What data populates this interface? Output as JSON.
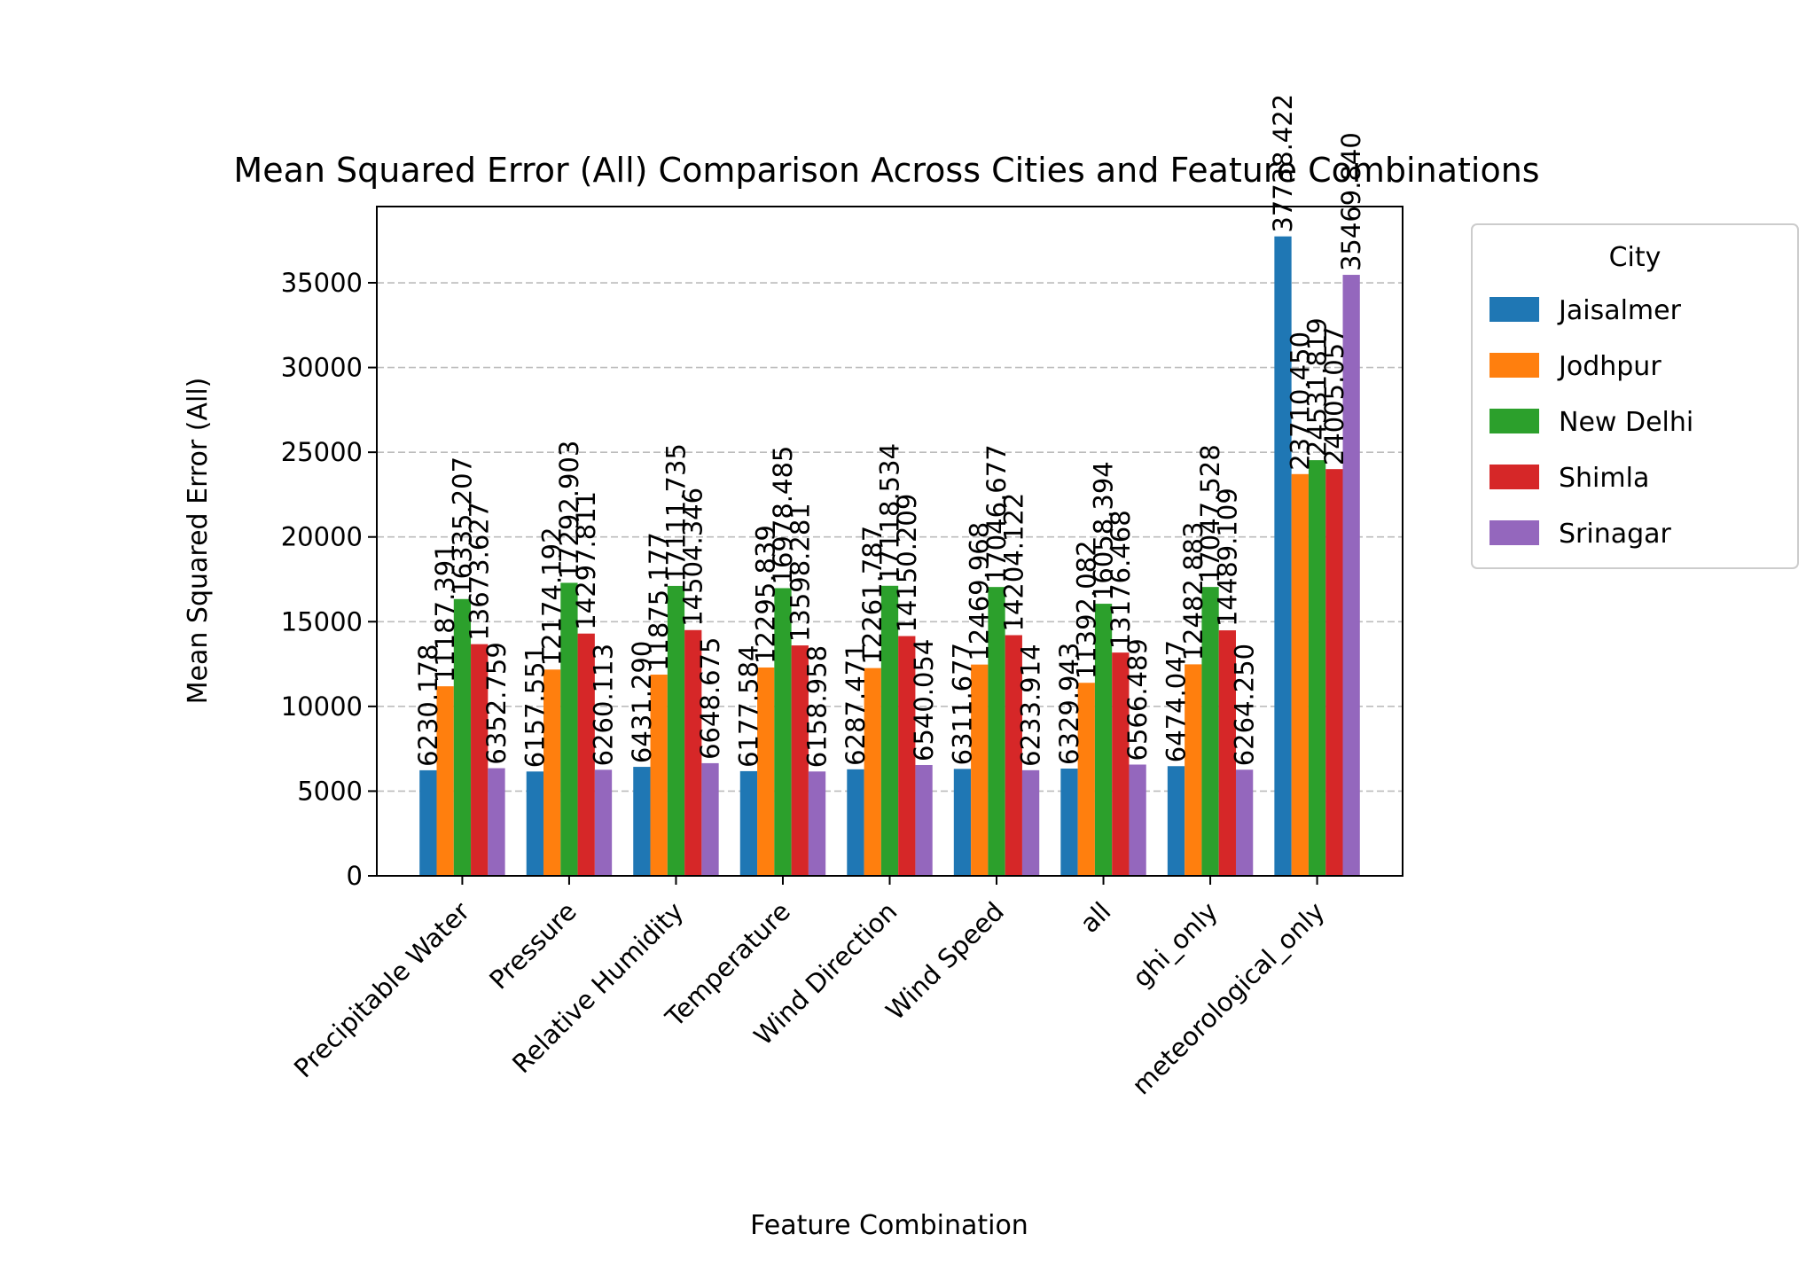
{
  "chart_data": {
    "type": "bar",
    "title": "Mean Squared Error (All) Comparison Across Cities and Feature Combinations",
    "xlabel": "Feature Combination",
    "ylabel": "Mean Squared Error (All)",
    "ylim": [
      0,
      39500
    ],
    "yticks": [
      0,
      5000,
      10000,
      15000,
      20000,
      25000,
      30000,
      35000
    ],
    "grid": "y-dashed",
    "legend": {
      "title": "City",
      "placement": "outside-right"
    },
    "categories": [
      "Precipitable Water",
      "Pressure",
      "Relative Humidity",
      "Temperature",
      "Wind Direction",
      "Wind Speed",
      "all",
      "ghi_only",
      "meteorological_only"
    ],
    "series": [
      {
        "name": "Jaisalmer",
        "color": "#1f77b4",
        "values": [
          6230.178,
          6157.551,
          6431.29,
          6177.584,
          6287.471,
          6311.677,
          6329.943,
          6474.047,
          37738.422
        ]
      },
      {
        "name": "Jodhpur",
        "color": "#ff7f0e",
        "values": [
          11187.391,
          12174.192,
          11875.177,
          12295.839,
          12261.787,
          12469.968,
          11392.082,
          12482.883,
          23710.45
        ]
      },
      {
        "name": "New Delhi",
        "color": "#2ca02c",
        "values": [
          16335.207,
          17292.903,
          17111.735,
          16978.485,
          17118.534,
          17046.677,
          16058.394,
          17047.528,
          24531.819
        ]
      },
      {
        "name": "Shimla",
        "color": "#d62728",
        "values": [
          13673.627,
          14297.811,
          14504.346,
          13598.281,
          14150.209,
          14204.122,
          13176.468,
          14489.109,
          24005.057
        ]
      },
      {
        "name": "Srinagar",
        "color": "#9467bd",
        "values": [
          6352.759,
          6260.113,
          6648.675,
          6158.958,
          6540.054,
          6233.914,
          6566.489,
          6264.25,
          35469.84
        ]
      }
    ]
  }
}
